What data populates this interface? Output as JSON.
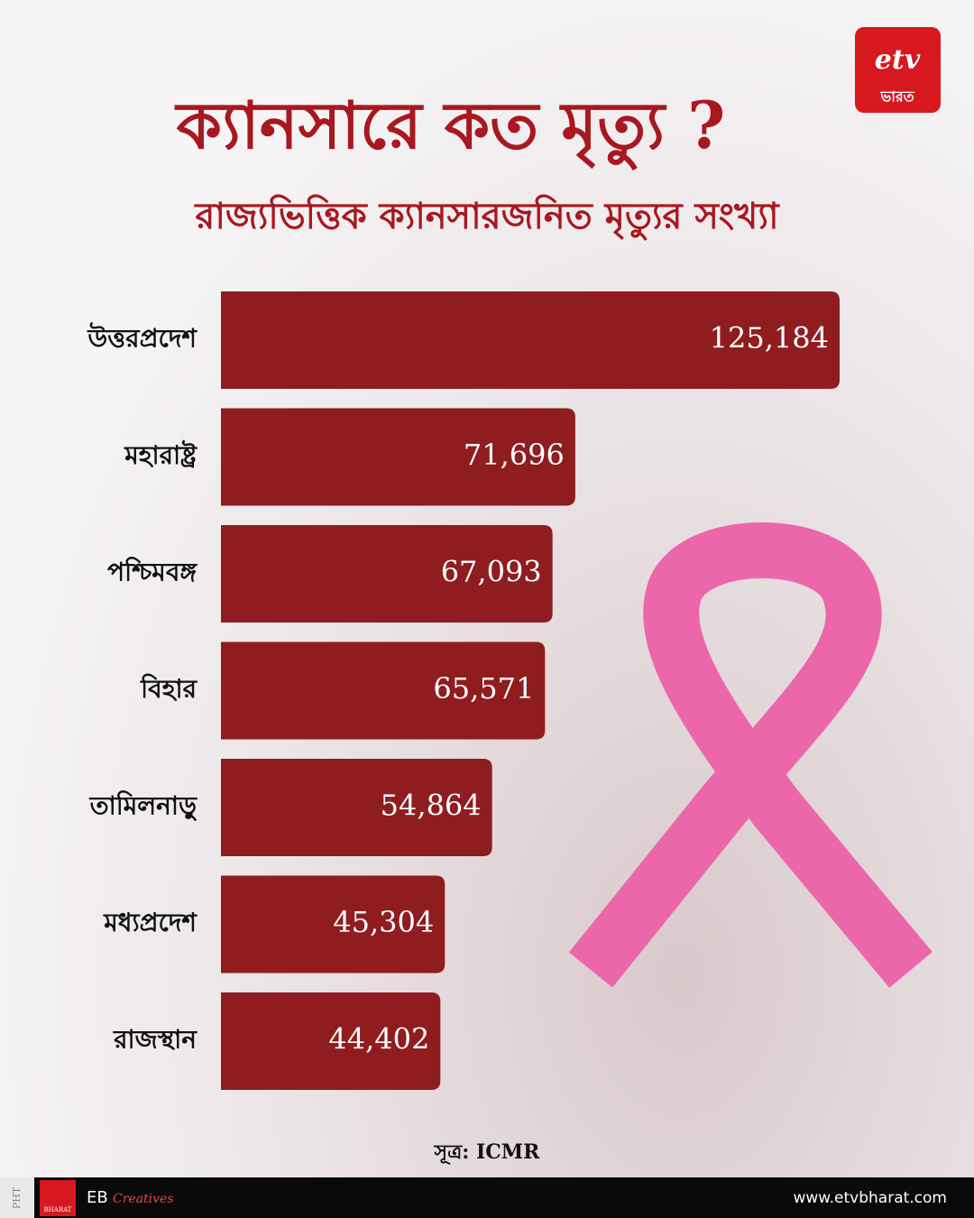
{
  "chart_data": {
    "type": "bar",
    "orientation": "horizontal",
    "title": "ক্যানসারে কত মৃত্যু ?",
    "subtitle": "রাজ্যভিত্তিক ক্যানসারজনিত মৃত্যুর সংখ্যা",
    "categories": [
      "উত্তরপ্রদেশ",
      "মহারাষ্ট্র",
      "পশ্চিমবঙ্গ",
      "বিহার",
      "তামিলনাড়ু",
      "মধ্যপ্রদেশ",
      "রাজস্থান"
    ],
    "values": [
      125184,
      71696,
      67093,
      65571,
      54864,
      45304,
      44402
    ],
    "value_labels": [
      "125,184",
      "71,696",
      "67,093",
      "65,571",
      "54,864",
      "45,304",
      "44,402"
    ],
    "color": "#8f1d20",
    "source": "সূত্র: ICMR"
  },
  "logo": {
    "text": "ভারত"
  },
  "footer": {
    "side": "PHT",
    "brand": "BHARAT",
    "eb": "EB",
    "creatives": "Creatives",
    "url": "www.etvbharat.com"
  }
}
